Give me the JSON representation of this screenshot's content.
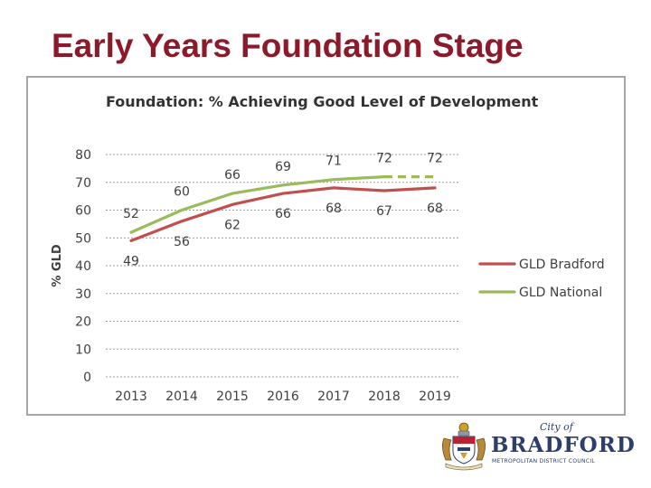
{
  "slide": {
    "title": "Early Years Foundation Stage"
  },
  "chart_data": {
    "type": "line",
    "title": "Foundation: % Achieving Good Level of Development",
    "ylabel": "% GLD",
    "xlabel": "",
    "ylim": [
      0,
      80
    ],
    "yticks": [
      0,
      10,
      20,
      30,
      40,
      50,
      60,
      70,
      80
    ],
    "categories": [
      "2013",
      "2014",
      "2015",
      "2016",
      "2017",
      "2018",
      "2019"
    ],
    "grid": true,
    "legend_position": "right",
    "series": [
      {
        "name": "GLD Bradford",
        "color": "#c0504d",
        "values": [
          49,
          56,
          62,
          66,
          68,
          67,
          68
        ],
        "labels": [
          "49",
          "56",
          "62",
          "66",
          "68",
          "67",
          "68"
        ],
        "label_side": "below"
      },
      {
        "name": "GLD National",
        "color": "#9bbb59",
        "values": [
          52,
          60,
          66,
          69,
          71,
          72,
          72
        ],
        "labels": [
          "52",
          "60",
          "66",
          "69",
          "71",
          "72",
          "72"
        ],
        "label_side": "above",
        "dashed_last_segment": true
      }
    ]
  },
  "logo": {
    "city_text": "City of",
    "name_text": "BRADFORD",
    "council_text": "METROPOLITAN DISTRICT COUNCIL"
  }
}
